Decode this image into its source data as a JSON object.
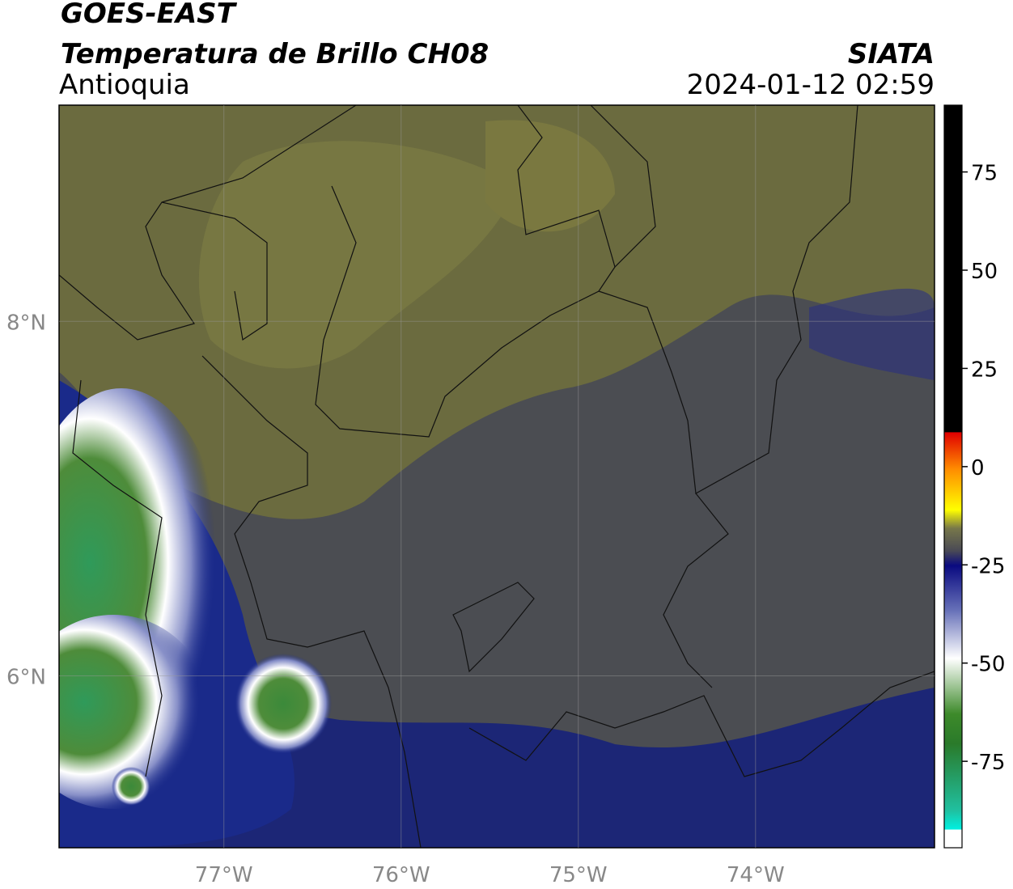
{
  "header": {
    "title": "GOES-EAST",
    "subtitle": "Temperatura de Brillo CH08",
    "region": "Antioquia",
    "source": "SIATA",
    "datetime": "2024-01-12 02:59"
  },
  "map": {
    "xlim": [
      -77.93,
      -72.99
    ],
    "ylim": [
      5.03,
      9.22
    ],
    "xticks": [
      {
        "value": -77,
        "label": "77°W"
      },
      {
        "value": -76,
        "label": "76°W"
      },
      {
        "value": -75,
        "label": "75°W"
      },
      {
        "value": -74,
        "label": "74°W"
      }
    ],
    "yticks": [
      {
        "value": 8,
        "label": "8°N"
      },
      {
        "value": 6,
        "label": "6°N"
      }
    ]
  },
  "colorbar": {
    "lim": [
      -97,
      92
    ],
    "ticks": [
      75,
      50,
      25,
      0,
      -25,
      -50,
      -75
    ]
  }
}
